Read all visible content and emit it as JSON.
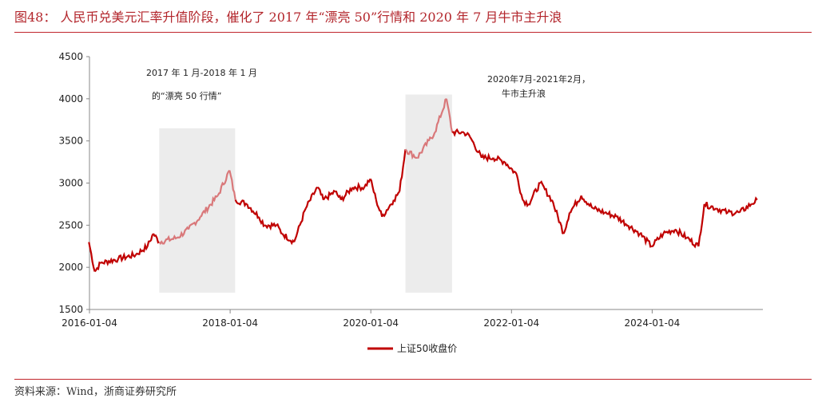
{
  "title": "图48：  人民币兑美元汇率升值阶段，催化了 2017 年“漂亮 50”行情和 2020 年 7 月牛市主升浪",
  "source": "资料来源：Wind，浙商证券研究所",
  "chart_data": {
    "type": "line",
    "ylim": [
      1500,
      4500
    ],
    "yticks": [
      "1500",
      "2000",
      "2500",
      "3000",
      "3500",
      "4000",
      "4500"
    ],
    "xticks": [
      "2016-01-04",
      "2018-01-04",
      "2020-01-04",
      "2022-01-04",
      "2024-01-04"
    ],
    "xrange": [
      "2016-01-04",
      "2025-07-31"
    ],
    "grid": false,
    "legend": "bottom",
    "colors": {
      "line": "#c00000",
      "highlight_line": "#d9787a",
      "shade": "#ececec"
    },
    "highlights": [
      {
        "from": "2017-01",
        "to": "2018-01",
        "label_lines": [
          "2017 年 1 月-2018 年 1 月",
          "的“漂亮 50 行情”"
        ]
      },
      {
        "from": "2020-07",
        "to": "2021-02",
        "label_lines": [
          "2020年7月-2021年2月，",
          "牛市主升浪"
        ]
      }
    ],
    "series": [
      {
        "name": "上证50收盘价",
        "points": [
          [
            "2016-01",
            2300
          ],
          [
            "2016-02",
            1950
          ],
          [
            "2016-03",
            2050
          ],
          [
            "2016-06",
            2100
          ],
          [
            "2016-09",
            2150
          ],
          [
            "2016-11",
            2250
          ],
          [
            "2016-12",
            2400
          ],
          [
            "2017-01",
            2300
          ],
          [
            "2017-04",
            2350
          ],
          [
            "2017-06",
            2450
          ],
          [
            "2017-08",
            2600
          ],
          [
            "2017-11",
            2850
          ],
          [
            "2018-01",
            3150
          ],
          [
            "2018-02",
            2800
          ],
          [
            "2018-04",
            2750
          ],
          [
            "2018-06",
            2600
          ],
          [
            "2018-07",
            2500
          ],
          [
            "2018-09",
            2500
          ],
          [
            "2018-10",
            2400
          ],
          [
            "2018-12",
            2300
          ],
          [
            "2019-02",
            2700
          ],
          [
            "2019-04",
            2950
          ],
          [
            "2019-05",
            2800
          ],
          [
            "2019-07",
            2900
          ],
          [
            "2019-08",
            2800
          ],
          [
            "2019-10",
            2950
          ],
          [
            "2019-12",
            2950
          ],
          [
            "2020-01",
            3050
          ],
          [
            "2020-02",
            2800
          ],
          [
            "2020-03",
            2600
          ],
          [
            "2020-05",
            2800
          ],
          [
            "2020-06",
            2900
          ],
          [
            "2020-07",
            3400
          ],
          [
            "2020-09",
            3300
          ],
          [
            "2020-11",
            3500
          ],
          [
            "2020-12",
            3600
          ],
          [
            "2021-02",
            4000
          ],
          [
            "2021-03",
            3600
          ],
          [
            "2021-05",
            3600
          ],
          [
            "2021-06",
            3550
          ],
          [
            "2021-08",
            3300
          ],
          [
            "2021-10",
            3300
          ],
          [
            "2021-12",
            3250
          ],
          [
            "2022-02",
            3100
          ],
          [
            "2022-03",
            2800
          ],
          [
            "2022-04",
            2750
          ],
          [
            "2022-06",
            3000
          ],
          [
            "2022-08",
            2800
          ],
          [
            "2022-10",
            2400
          ],
          [
            "2022-11",
            2650
          ],
          [
            "2023-01",
            2850
          ],
          [
            "2023-03",
            2700
          ],
          [
            "2023-05",
            2650
          ],
          [
            "2023-07",
            2600
          ],
          [
            "2023-09",
            2500
          ],
          [
            "2023-11",
            2400
          ],
          [
            "2024-01",
            2250
          ],
          [
            "2024-03",
            2400
          ],
          [
            "2024-05",
            2450
          ],
          [
            "2024-07",
            2350
          ],
          [
            "2024-09",
            2250
          ],
          [
            "2024-10",
            2750
          ],
          [
            "2024-12",
            2700
          ],
          [
            "2025-02",
            2650
          ],
          [
            "2025-04",
            2650
          ],
          [
            "2025-06",
            2750
          ],
          [
            "2025-07",
            2800
          ]
        ]
      }
    ]
  }
}
